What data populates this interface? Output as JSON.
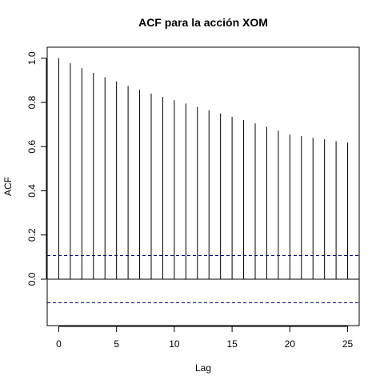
{
  "chart_data": {
    "type": "bar",
    "title": "ACF para la acción XOM",
    "xlabel": "Lag",
    "ylabel": "ACF",
    "xlim": [
      -1,
      26
    ],
    "ylim": [
      -0.21,
      1.05
    ],
    "x_ticks": [
      0,
      5,
      10,
      15,
      20,
      25
    ],
    "x_tick_labels": [
      "0",
      "5",
      "10",
      "15",
      "20",
      "25"
    ],
    "y_ticks": [
      0.0,
      0.2,
      0.4,
      0.6,
      0.8,
      1.0
    ],
    "y_tick_labels": [
      "0.0",
      "0.2",
      "0.4",
      "0.6",
      "0.8",
      "1.0"
    ],
    "lags": [
      0,
      1,
      2,
      3,
      4,
      5,
      6,
      7,
      8,
      9,
      10,
      11,
      12,
      13,
      14,
      15,
      16,
      17,
      18,
      19,
      20,
      21,
      22,
      23,
      24,
      25
    ],
    "acf": [
      1.0,
      0.977,
      0.955,
      0.934,
      0.914,
      0.895,
      0.875,
      0.857,
      0.84,
      0.825,
      0.81,
      0.795,
      0.78,
      0.765,
      0.75,
      0.735,
      0.72,
      0.705,
      0.69,
      0.672,
      0.655,
      0.648,
      0.64,
      0.633,
      0.625,
      0.618
    ],
    "confidence_bound": 0.107,
    "zero_line": 0.0,
    "colors": {
      "bars": "#000000",
      "confidence_lines": "#00008B",
      "axes": "#000000"
    }
  }
}
